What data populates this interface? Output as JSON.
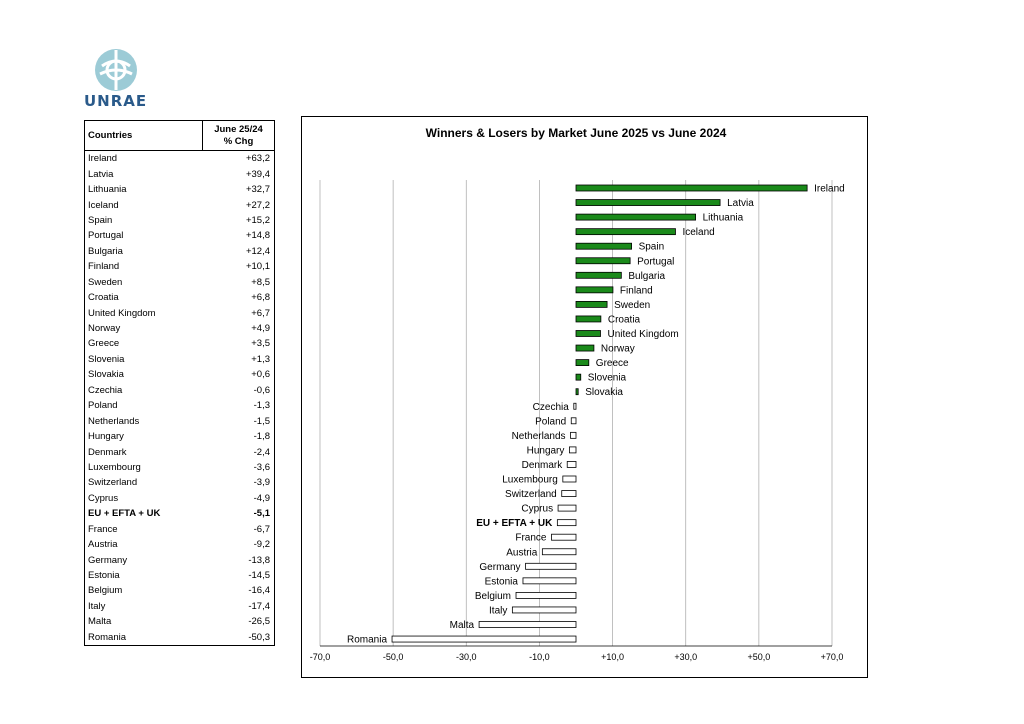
{
  "logo": {
    "text": "UNRAE",
    "accent": "#7ab8c9"
  },
  "table": {
    "header_country": "Countries",
    "header_change_line1": "June 25/24",
    "header_change_line2": "% Chg",
    "rows": [
      {
        "country": "Ireland",
        "chg": "+63,2"
      },
      {
        "country": "Latvia",
        "chg": "+39,4"
      },
      {
        "country": "Lithuania",
        "chg": "+32,7"
      },
      {
        "country": "Iceland",
        "chg": "+27,2"
      },
      {
        "country": "Spain",
        "chg": "+15,2"
      },
      {
        "country": "Portugal",
        "chg": "+14,8"
      },
      {
        "country": "Bulgaria",
        "chg": "+12,4"
      },
      {
        "country": "Finland",
        "chg": "+10,1"
      },
      {
        "country": "Sweden",
        "chg": "+8,5"
      },
      {
        "country": "Croatia",
        "chg": "+6,8"
      },
      {
        "country": "United Kingdom",
        "chg": "+6,7"
      },
      {
        "country": "Norway",
        "chg": "+4,9"
      },
      {
        "country": "Greece",
        "chg": "+3,5"
      },
      {
        "country": "Slovenia",
        "chg": "+1,3"
      },
      {
        "country": "Slovakia",
        "chg": "+0,6"
      },
      {
        "country": "Czechia",
        "chg": "-0,6"
      },
      {
        "country": "Poland",
        "chg": "-1,3"
      },
      {
        "country": "Netherlands",
        "chg": "-1,5"
      },
      {
        "country": "Hungary",
        "chg": "-1,8"
      },
      {
        "country": "Denmark",
        "chg": "-2,4"
      },
      {
        "country": "Luxembourg",
        "chg": "-3,6"
      },
      {
        "country": "Switzerland",
        "chg": "-3,9"
      },
      {
        "country": "Cyprus",
        "chg": "-4,9"
      },
      {
        "country": "EU + EFTA + UK",
        "chg": "-5,1",
        "bold": true
      },
      {
        "country": "France",
        "chg": "-6,7"
      },
      {
        "country": "Austria",
        "chg": "-9,2"
      },
      {
        "country": "Germany",
        "chg": "-13,8"
      },
      {
        "country": "Estonia",
        "chg": "-14,5"
      },
      {
        "country": "Belgium",
        "chg": "-16,4"
      },
      {
        "country": "Italy",
        "chg": "-17,4"
      },
      {
        "country": "Malta",
        "chg": "-26,5"
      },
      {
        "country": "Romania",
        "chg": "-50,3"
      }
    ]
  },
  "chart_data": {
    "type": "bar",
    "orientation": "horizontal",
    "title": "Winners & Losers by Market June 2025 vs June 2024",
    "categories": [
      "Ireland",
      "Latvia",
      "Lithuania",
      "Iceland",
      "Spain",
      "Portugal",
      "Bulgaria",
      "Finland",
      "Sweden",
      "Croatia",
      "United Kingdom",
      "Norway",
      "Greece",
      "Slovenia",
      "Slovakia",
      "Czechia",
      "Poland",
      "Netherlands",
      "Hungary",
      "Denmark",
      "Luxembourg",
      "Switzerland",
      "Cyprus",
      "EU + EFTA + UK",
      "France",
      "Austria",
      "Germany",
      "Estonia",
      "Belgium",
      "Italy",
      "Malta",
      "Romania"
    ],
    "values": [
      63.2,
      39.4,
      32.7,
      27.2,
      15.2,
      14.8,
      12.4,
      10.1,
      8.5,
      6.8,
      6.7,
      4.9,
      3.5,
      1.3,
      0.6,
      -0.6,
      -1.3,
      -1.5,
      -1.8,
      -2.4,
      -3.6,
      -3.9,
      -4.9,
      -5.1,
      -6.7,
      -9.2,
      -13.8,
      -14.5,
      -16.4,
      -17.4,
      -26.5,
      -50.3
    ],
    "bold_categories": [
      "EU + EFTA + UK"
    ],
    "xlim": [
      -70,
      70
    ],
    "xticks": [
      -70,
      -50,
      -30,
      -10,
      10,
      30,
      50,
      70
    ],
    "xtick_labels": [
      "-70,0",
      "-50,0",
      "-30,0",
      "-10,0",
      "+10,0",
      "+30,0",
      "+50,0",
      "+70,0"
    ],
    "grid": "vertical",
    "positive_color": "#1a8a1a",
    "negative_color": "#ffffff",
    "bar_edge_color": "#000000"
  }
}
